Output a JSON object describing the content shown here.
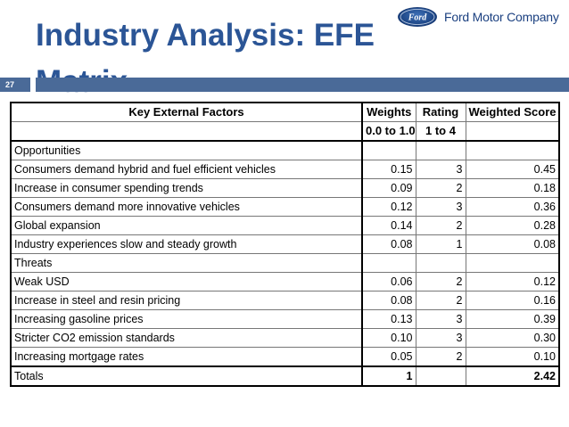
{
  "slide": {
    "title": "Industry Analysis: EFE Matrix",
    "number": "27",
    "brand": "Ford Motor Company",
    "logo_text": "Ford"
  },
  "table": {
    "headers": {
      "factors": "Key External Factors",
      "weights": "Weights",
      "weights_range": "0.0 to 1.0",
      "rating": "Rating",
      "rating_range": "1 to 4",
      "weighted_score": "Weighted Score"
    },
    "opportunities_label": "Opportunities",
    "opportunities": [
      {
        "factor": "Consumers demand hybrid and fuel efficient vehicles",
        "weight": "0.15",
        "rating": "3",
        "score": "0.45"
      },
      {
        "factor": "Increase in consumer spending trends",
        "weight": "0.09",
        "rating": "2",
        "score": "0.18"
      },
      {
        "factor": "Consumers demand more innovative vehicles",
        "weight": "0.12",
        "rating": "3",
        "score": "0.36"
      },
      {
        "factor": "Global expansion",
        "weight": "0.14",
        "rating": "2",
        "score": "0.28"
      },
      {
        "factor": "Industry experiences slow and steady growth",
        "weight": "0.08",
        "rating": "1",
        "score": "0.08"
      }
    ],
    "threats_label": "Threats",
    "threats": [
      {
        "factor": "Weak USD",
        "weight": "0.06",
        "rating": "2",
        "score": "0.12"
      },
      {
        "factor": "Increase in steel and resin pricing",
        "weight": "0.08",
        "rating": "2",
        "score": "0.16"
      },
      {
        "factor": "Increasing gasoline prices",
        "weight": "0.13",
        "rating": "3",
        "score": "0.39"
      },
      {
        "factor": "Stricter CO2 emission standards",
        "weight": "0.10",
        "rating": "3",
        "score": "0.30"
      },
      {
        "factor": "Increasing mortgage rates",
        "weight": "0.05",
        "rating": "2",
        "score": "0.10"
      }
    ],
    "totals": {
      "label": "Totals",
      "weight": "1",
      "score": "2.42"
    }
  }
}
